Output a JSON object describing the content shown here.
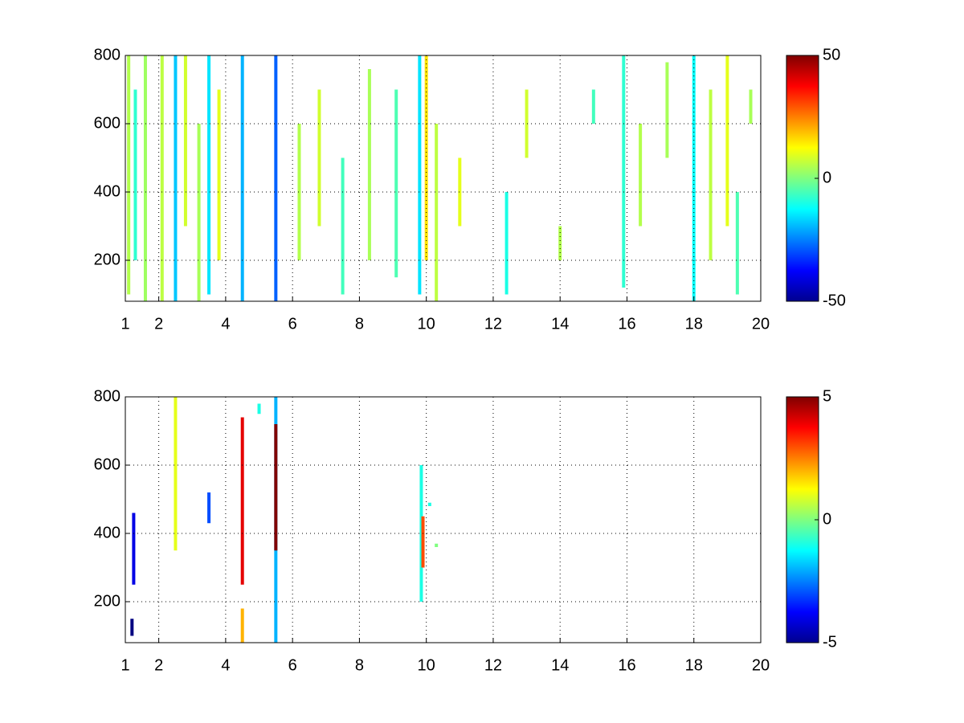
{
  "chart_data": [
    {
      "type": "heatmap",
      "x": [
        1.1,
        1.3,
        1.6,
        2.1,
        2.5,
        2.8,
        3.2,
        3.5,
        3.8,
        4.5,
        5.5,
        6.2,
        6.8,
        7.5,
        8.3,
        9.1,
        9.8,
        10.0,
        10.3,
        11.0,
        12.4,
        13.0,
        14.0,
        15.0,
        15.9,
        16.4,
        17.2,
        18.0,
        18.5,
        19.0,
        19.3,
        19.7
      ],
      "y0": [
        100,
        200,
        80,
        80,
        80,
        300,
        80,
        100,
        200,
        80,
        80,
        200,
        300,
        100,
        200,
        150,
        100,
        200,
        80,
        300,
        100,
        500,
        200,
        600,
        120,
        300,
        500,
        80,
        200,
        300,
        100,
        600
      ],
      "y1": [
        800,
        700,
        800,
        800,
        800,
        800,
        600,
        800,
        700,
        800,
        800,
        600,
        700,
        500,
        760,
        700,
        800,
        800,
        600,
        500,
        400,
        700,
        300,
        700,
        800,
        600,
        780,
        800,
        700,
        800,
        400,
        700
      ],
      "values": [
        5,
        -8,
        3,
        6,
        -18,
        8,
        4,
        -15,
        10,
        -20,
        -28,
        5,
        8,
        -6,
        4,
        -5,
        -15,
        15,
        6,
        10,
        -10,
        8,
        5,
        -6,
        -8,
        5,
        4,
        -12,
        6,
        10,
        -5,
        4
      ],
      "xlim": [
        1,
        20
      ],
      "xticks": [
        1,
        2,
        4,
        6,
        8,
        10,
        12,
        14,
        16,
        18,
        20
      ],
      "ylim": [
        80,
        800
      ],
      "yticks": [
        200,
        400,
        600,
        800
      ],
      "clim": [
        -50,
        50
      ],
      "cticks": [
        -50,
        0,
        50
      ],
      "grid": true
    },
    {
      "type": "heatmap",
      "x": [
        1.2,
        1.25,
        2.5,
        3.5,
        4.5,
        4.5,
        5.0,
        5.5,
        5.5,
        9.85,
        9.9,
        10.1,
        10.3
      ],
      "y0": [
        100,
        250,
        350,
        430,
        80,
        250,
        750,
        80,
        350,
        200,
        300,
        480,
        360
      ],
      "y1": [
        150,
        460,
        800,
        520,
        180,
        740,
        780,
        800,
        720,
        600,
        450,
        490,
        370
      ],
      "values": [
        -5,
        -4,
        1,
        -3,
        2,
        4,
        -1,
        -2,
        5,
        -1,
        3,
        -1,
        0
      ],
      "xlim": [
        1,
        20
      ],
      "xticks": [
        1,
        2,
        4,
        6,
        8,
        10,
        12,
        14,
        16,
        18,
        20
      ],
      "ylim": [
        80,
        800
      ],
      "yticks": [
        200,
        400,
        600,
        800
      ],
      "clim": [
        -5,
        5
      ],
      "cticks": [
        -5,
        0,
        5
      ],
      "grid": true
    }
  ]
}
